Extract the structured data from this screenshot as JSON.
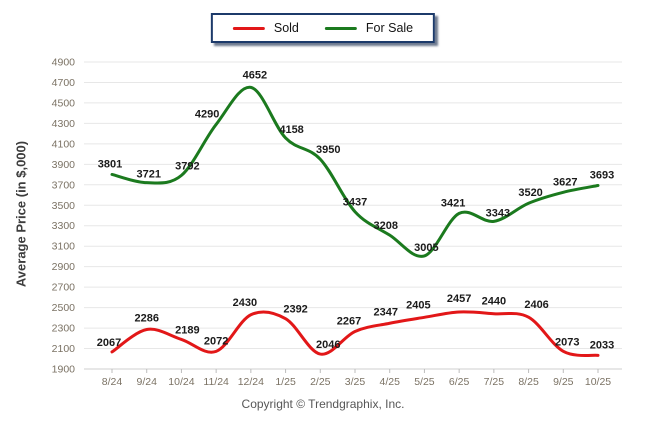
{
  "legend": {
    "sold_label": "Sold",
    "for_sale_label": "For Sale"
  },
  "footer": {
    "copyright": "Copyright © Trendgraphix, Inc."
  },
  "colors": {
    "sold": "#e21718",
    "for_sale": "#1b7a1e",
    "grid": "#e7e7e7",
    "axis_line": "#cfcfcf",
    "tick_mark": "#bdbdbd",
    "axis_text": "#7b7264",
    "data_label_text": "#1b1b1b",
    "legend_border": "#1c3a6a"
  },
  "chart_data": {
    "type": "line",
    "title": "",
    "xlabel": "",
    "ylabel": "Average Price (in $,000)",
    "categories": [
      "8/24",
      "9/24",
      "10/24",
      "11/24",
      "12/24",
      "1/25",
      "2/25",
      "3/25",
      "4/25",
      "5/25",
      "6/25",
      "7/25",
      "8/25",
      "9/25",
      "10/25"
    ],
    "series": [
      {
        "name": "Sold",
        "color_key": "sold",
        "values": [
          2067,
          2286,
          2189,
          2072,
          2430,
          2392,
          2046,
          2267,
          2347,
          2405,
          2457,
          2440,
          2406,
          2073,
          2033
        ]
      },
      {
        "name": "For Sale",
        "color_key": "for_sale",
        "values": [
          3801,
          3721,
          3792,
          4290,
          4652,
          4158,
          3950,
          3437,
          3208,
          3005,
          3421,
          3343,
          3520,
          3627,
          3693
        ]
      }
    ],
    "ylim": [
      1900,
      4900
    ],
    "ytick_step": 200,
    "grid": true,
    "data_labels": true,
    "legend_position": "top-center",
    "line_style": "smooth"
  }
}
